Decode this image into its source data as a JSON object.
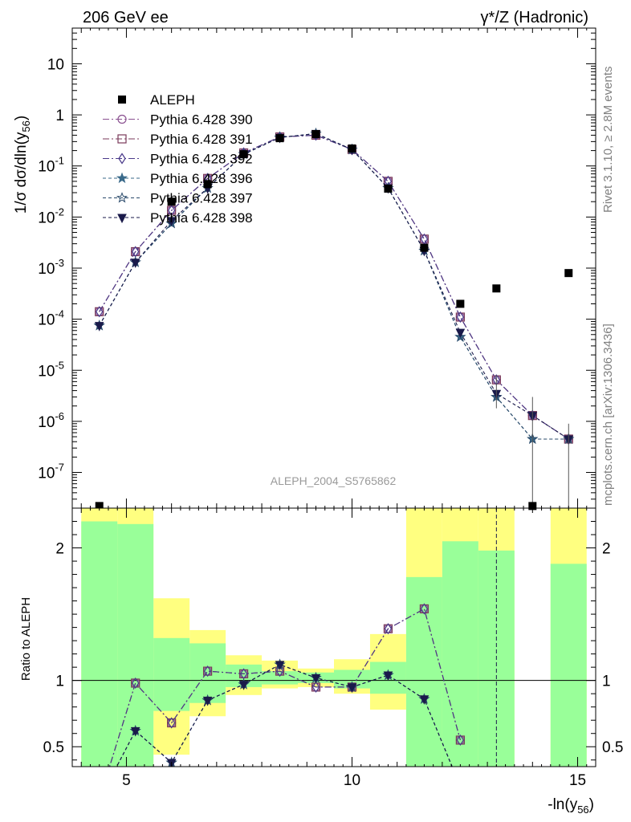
{
  "header": {
    "left": "206 GeV ee",
    "right": "γ*/Z (Hadronic)"
  },
  "side_labels": {
    "rivet": "Rivet 3.1.10, ≥ 2.8M events",
    "mcplots": "mcplots.cern.ch [arXiv:1306.3436]"
  },
  "watermark": "ALEPH_2004_S5765862",
  "chart_data": [
    {
      "type": "scatter",
      "panel": "main",
      "ylabel": "1/σ dσ/dln(y56)",
      "ylog": true,
      "xlim": [
        3.8,
        15.4
      ],
      "ylim": [
        2e-08,
        50
      ],
      "y_ticks": [
        "10^-7",
        "10^-6",
        "10^-5",
        "10^-4",
        "10^-3",
        "10^-2",
        "10^-1",
        "1",
        "10"
      ],
      "legend_placement": "top-left",
      "x": [
        4.4,
        5.2,
        6.0,
        6.8,
        7.6,
        8.4,
        9.2,
        10.0,
        10.8,
        11.6,
        12.4,
        13.2,
        14.0,
        14.8
      ],
      "data": {
        "name": "ALEPH",
        "values": [
          2.2e-08,
          null,
          0.02,
          0.044,
          0.17,
          0.35,
          0.42,
          0.22,
          0.036,
          0.0025,
          0.0002,
          0.0004,
          2.2e-08,
          0.0008
        ]
      },
      "series": [
        {
          "name": "Pythia 6.428 390",
          "color": "#8a5090",
          "dash": "8,3,2,3",
          "marker": "circle-open",
          "values": [
            0.00014,
            0.0021,
            0.0135,
            0.057,
            0.18,
            0.37,
            0.4,
            0.21,
            0.05,
            0.0037,
            0.00011,
            6.5e-06,
            1.3e-06,
            4.5e-07
          ]
        },
        {
          "name": "Pythia 6.428 391",
          "color": "#7a3a5a",
          "dash": "8,3,2,3",
          "marker": "square-open",
          "values": [
            0.00014,
            0.0021,
            0.0135,
            0.057,
            0.18,
            0.37,
            0.4,
            0.21,
            0.05,
            0.0037,
            0.00011,
            6.5e-06,
            1.3e-06,
            4.5e-07
          ]
        },
        {
          "name": "Pythia 6.428 392",
          "color": "#4a3a8a",
          "dash": "8,3,2,3",
          "marker": "diamond-open",
          "values": [
            0.00014,
            0.0021,
            0.0135,
            0.057,
            0.18,
            0.37,
            0.4,
            0.21,
            0.05,
            0.0037,
            0.00011,
            6.5e-06,
            1.3e-06,
            4.5e-07
          ]
        },
        {
          "name": "Pythia 6.428 396",
          "color": "#3a6a8a",
          "dash": "4,3",
          "marker": "star-filled",
          "values": [
            7.5e-05,
            0.0013,
            0.0075,
            0.037,
            0.17,
            0.36,
            0.43,
            0.21,
            0.037,
            0.0022,
            4.5e-05,
            3e-06,
            4.5e-07,
            4.5e-07
          ]
        },
        {
          "name": "Pythia 6.428 397",
          "color": "#2a4a6a",
          "dash": "4,3",
          "marker": "star-open",
          "values": [
            7.5e-05,
            0.0013,
            0.0075,
            0.037,
            0.17,
            0.36,
            0.43,
            0.21,
            0.037,
            0.0022,
            4.5e-05,
            3e-06,
            4.5e-07,
            4.5e-07
          ]
        },
        {
          "name": "Pythia 6.428 398",
          "color": "#1a1a4a",
          "dash": "4,3",
          "marker": "triangle-down-filled",
          "values": [
            7.5e-05,
            0.0013,
            0.0085,
            0.037,
            0.17,
            0.36,
            0.43,
            0.21,
            0.037,
            0.0022,
            5.5e-05,
            3.5e-06,
            1.3e-06,
            4.5e-07
          ]
        }
      ]
    },
    {
      "type": "line",
      "panel": "ratio",
      "xlabel": "-ln(y56)",
      "ylabel": "Ratio to ALEPH",
      "xlim": [
        3.8,
        15.4
      ],
      "ylim": [
        0.35,
        2.3
      ],
      "x_ticks": [
        5,
        10,
        15
      ],
      "y_ticks": [
        0.5,
        1,
        2
      ],
      "bins": [
        {
          "x0": 4.0,
          "x1": 4.8,
          "yellow": [
            0.3,
            2.3
          ],
          "green": [
            0.3,
            2.2
          ]
        },
        {
          "x0": 4.8,
          "x1": 5.6,
          "yellow": [
            0.3,
            2.3
          ],
          "green": [
            0.3,
            2.18
          ]
        },
        {
          "x0": 5.6,
          "x1": 6.4,
          "yellow": [
            0.44,
            1.62
          ],
          "green": [
            0.77,
            1.32
          ]
        },
        {
          "x0": 6.4,
          "x1": 7.2,
          "yellow": [
            0.73,
            1.38
          ],
          "green": [
            0.83,
            1.28
          ]
        },
        {
          "x0": 7.2,
          "x1": 8.0,
          "yellow": [
            0.89,
            1.19
          ],
          "green": [
            0.95,
            1.12
          ]
        },
        {
          "x0": 8.0,
          "x1": 8.8,
          "yellow": [
            0.94,
            1.15
          ],
          "green": [
            0.97,
            1.07
          ]
        },
        {
          "x0": 8.8,
          "x1": 9.6,
          "yellow": [
            0.95,
            1.09
          ],
          "green": [
            0.98,
            1.06
          ]
        },
        {
          "x0": 9.6,
          "x1": 10.4,
          "yellow": [
            0.9,
            1.16
          ],
          "green": [
            0.94,
            1.08
          ]
        },
        {
          "x0": 10.4,
          "x1": 11.2,
          "yellow": [
            0.78,
            1.35
          ],
          "green": [
            0.9,
            1.14
          ]
        },
        {
          "x0": 11.2,
          "x1": 12.0,
          "yellow": [
            0.3,
            2.3
          ],
          "green": [
            0.3,
            1.78
          ]
        },
        {
          "x0": 12.0,
          "x1": 12.8,
          "yellow": [
            0.3,
            2.3
          ],
          "green": [
            0.3,
            2.05
          ]
        },
        {
          "x0": 12.8,
          "x1": 13.6,
          "yellow": [
            0.3,
            2.3
          ],
          "green": [
            0.3,
            1.98
          ]
        },
        {
          "x0": 14.4,
          "x1": 15.2,
          "yellow": [
            0.3,
            2.3
          ],
          "green": [
            0.3,
            1.88
          ]
        }
      ],
      "x": [
        4.4,
        5.2,
        6.0,
        6.8,
        7.6,
        8.4,
        9.2,
        10.0,
        10.8,
        11.6,
        12.4
      ],
      "series": [
        {
          "name": "Pythia 6.428 390",
          "values": [
            0.1,
            0.98,
            0.68,
            1.07,
            1.05,
            1.07,
            0.95,
            0.95,
            1.39,
            1.54,
            0.55
          ]
        },
        {
          "name": "Pythia 6.428 391",
          "values": [
            0.1,
            0.98,
            0.68,
            1.07,
            1.05,
            1.07,
            0.95,
            0.95,
            1.39,
            1.54,
            0.55
          ]
        },
        {
          "name": "Pythia 6.428 392",
          "values": [
            0.1,
            0.98,
            0.68,
            1.07,
            1.05,
            1.07,
            0.95,
            0.95,
            1.39,
            1.54,
            0.55
          ]
        },
        {
          "name": "Pythia 6.428 396",
          "values": [
            0.1,
            0.62,
            0.38,
            0.85,
            0.97,
            1.12,
            1.02,
            0.95,
            1.04,
            0.86,
            0.2
          ]
        },
        {
          "name": "Pythia 6.428 397",
          "values": [
            0.1,
            0.62,
            0.38,
            0.85,
            0.97,
            1.12,
            1.02,
            0.95,
            1.04,
            0.86,
            0.2
          ]
        },
        {
          "name": "Pythia 6.428 398",
          "values": [
            0.1,
            0.62,
            0.38,
            0.85,
            0.97,
            1.12,
            1.02,
            0.95,
            1.04,
            0.86,
            0.2
          ]
        }
      ]
    }
  ]
}
